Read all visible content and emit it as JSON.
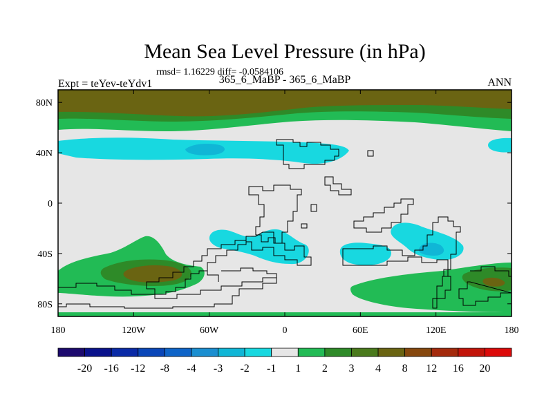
{
  "colors": {
    "land_outline": "#000000",
    "background_field": "#e6e6e6"
  },
  "chart_data": {
    "type": "heatmap",
    "title": "Mean Sea Level Pressure (in hPa)",
    "stats_text": "rmsd= 1.16229 diff= -0.0584106",
    "subtitle": "365_6_MaBP - 365_6_MaBP",
    "left_label": "Expt = teYev-teYdv1",
    "right_label": "ANN",
    "x_range": [
      -180,
      180
    ],
    "y_range": [
      -90,
      90
    ],
    "x_ticks": [
      {
        "value": -180,
        "label": "180"
      },
      {
        "value": -120,
        "label": "120W"
      },
      {
        "value": -60,
        "label": "60W"
      },
      {
        "value": 0,
        "label": "0"
      },
      {
        "value": 60,
        "label": "60E"
      },
      {
        "value": 120,
        "label": "120E"
      },
      {
        "value": 180,
        "label": "180"
      }
    ],
    "y_ticks": [
      {
        "value": 80,
        "label": "80N"
      },
      {
        "value": 40,
        "label": "40N"
      },
      {
        "value": 0,
        "label": "0"
      },
      {
        "value": -40,
        "label": "40S"
      },
      {
        "value": -80,
        "label": "80S"
      }
    ],
    "colorbar": {
      "labels": [
        "-20",
        "-16",
        "-12",
        "-8",
        "-4",
        "-3",
        "-2",
        "-1",
        "1",
        "2",
        "3",
        "4",
        "8",
        "12",
        "16",
        "20"
      ],
      "colors": [
        "#1c0a6e",
        "#0a128c",
        "#0a2aa6",
        "#0a46b8",
        "#0e64c8",
        "#1a8ed0",
        "#10b6d6",
        "#18d8e0",
        "#e6e6e6",
        "#22bb55",
        "#2e8a28",
        "#4a7a1c",
        "#6a6412",
        "#86480e",
        "#a42a0c",
        "#c2140a",
        "#dc0a0a"
      ]
    },
    "regions": [
      {
        "level": "1 to 2",
        "color": "#22bb55",
        "lon": [
          -180,
          180
        ],
        "lat": [
          68,
          90
        ]
      },
      {
        "level": "2 to 3",
        "color": "#2e8a28",
        "lon": [
          -180,
          180
        ],
        "lat": [
          74,
          90
        ]
      },
      {
        "level": "4 to 8",
        "color": "#6a6412",
        "lon": [
          -180,
          180
        ],
        "lat": [
          78,
          90
        ]
      },
      {
        "level": "-2 to -1",
        "color": "#18d8e0",
        "lon": [
          -170,
          40
        ],
        "lat": [
          34,
          48
        ]
      },
      {
        "level": "-3 to -2",
        "color": "#10b6d6",
        "lon": [
          -150,
          -110
        ],
        "lat": [
          38,
          46
        ]
      },
      {
        "level": "-2 to -1",
        "color": "#18d8e0",
        "lon": [
          -50,
          30
        ],
        "lat": [
          -50,
          -20
        ]
      },
      {
        "level": "-2 to -1",
        "color": "#18d8e0",
        "lon": [
          45,
          80
        ],
        "lat": [
          -46,
          -34
        ]
      },
      {
        "level": "-2 to -1",
        "color": "#18d8e0",
        "lon": [
          85,
          140
        ],
        "lat": [
          -42,
          -16
        ]
      },
      {
        "level": "-3 to -2",
        "color": "#10b6d6",
        "lon": [
          110,
          130
        ],
        "lat": [
          -38,
          -30
        ]
      },
      {
        "level": "1 to 2",
        "color": "#22bb55",
        "lon": [
          -180,
          -70
        ],
        "lat": [
          -85,
          -25
        ]
      },
      {
        "level": "2 to 3",
        "color": "#2e8a28",
        "lon": [
          -165,
          -80
        ],
        "lat": [
          -60,
          -40
        ]
      },
      {
        "level": "4 to 8",
        "color": "#6a6412",
        "lon": [
          -145,
          -105
        ],
        "lat": [
          -55,
          -43
        ]
      },
      {
        "level": "1 to 2",
        "color": "#22bb55",
        "lon": [
          55,
          180
        ],
        "lat": [
          -85,
          -40
        ]
      },
      {
        "level": "2 to 3",
        "color": "#2e8a28",
        "lon": [
          140,
          180
        ],
        "lat": [
          -65,
          -48
        ]
      }
    ]
  }
}
